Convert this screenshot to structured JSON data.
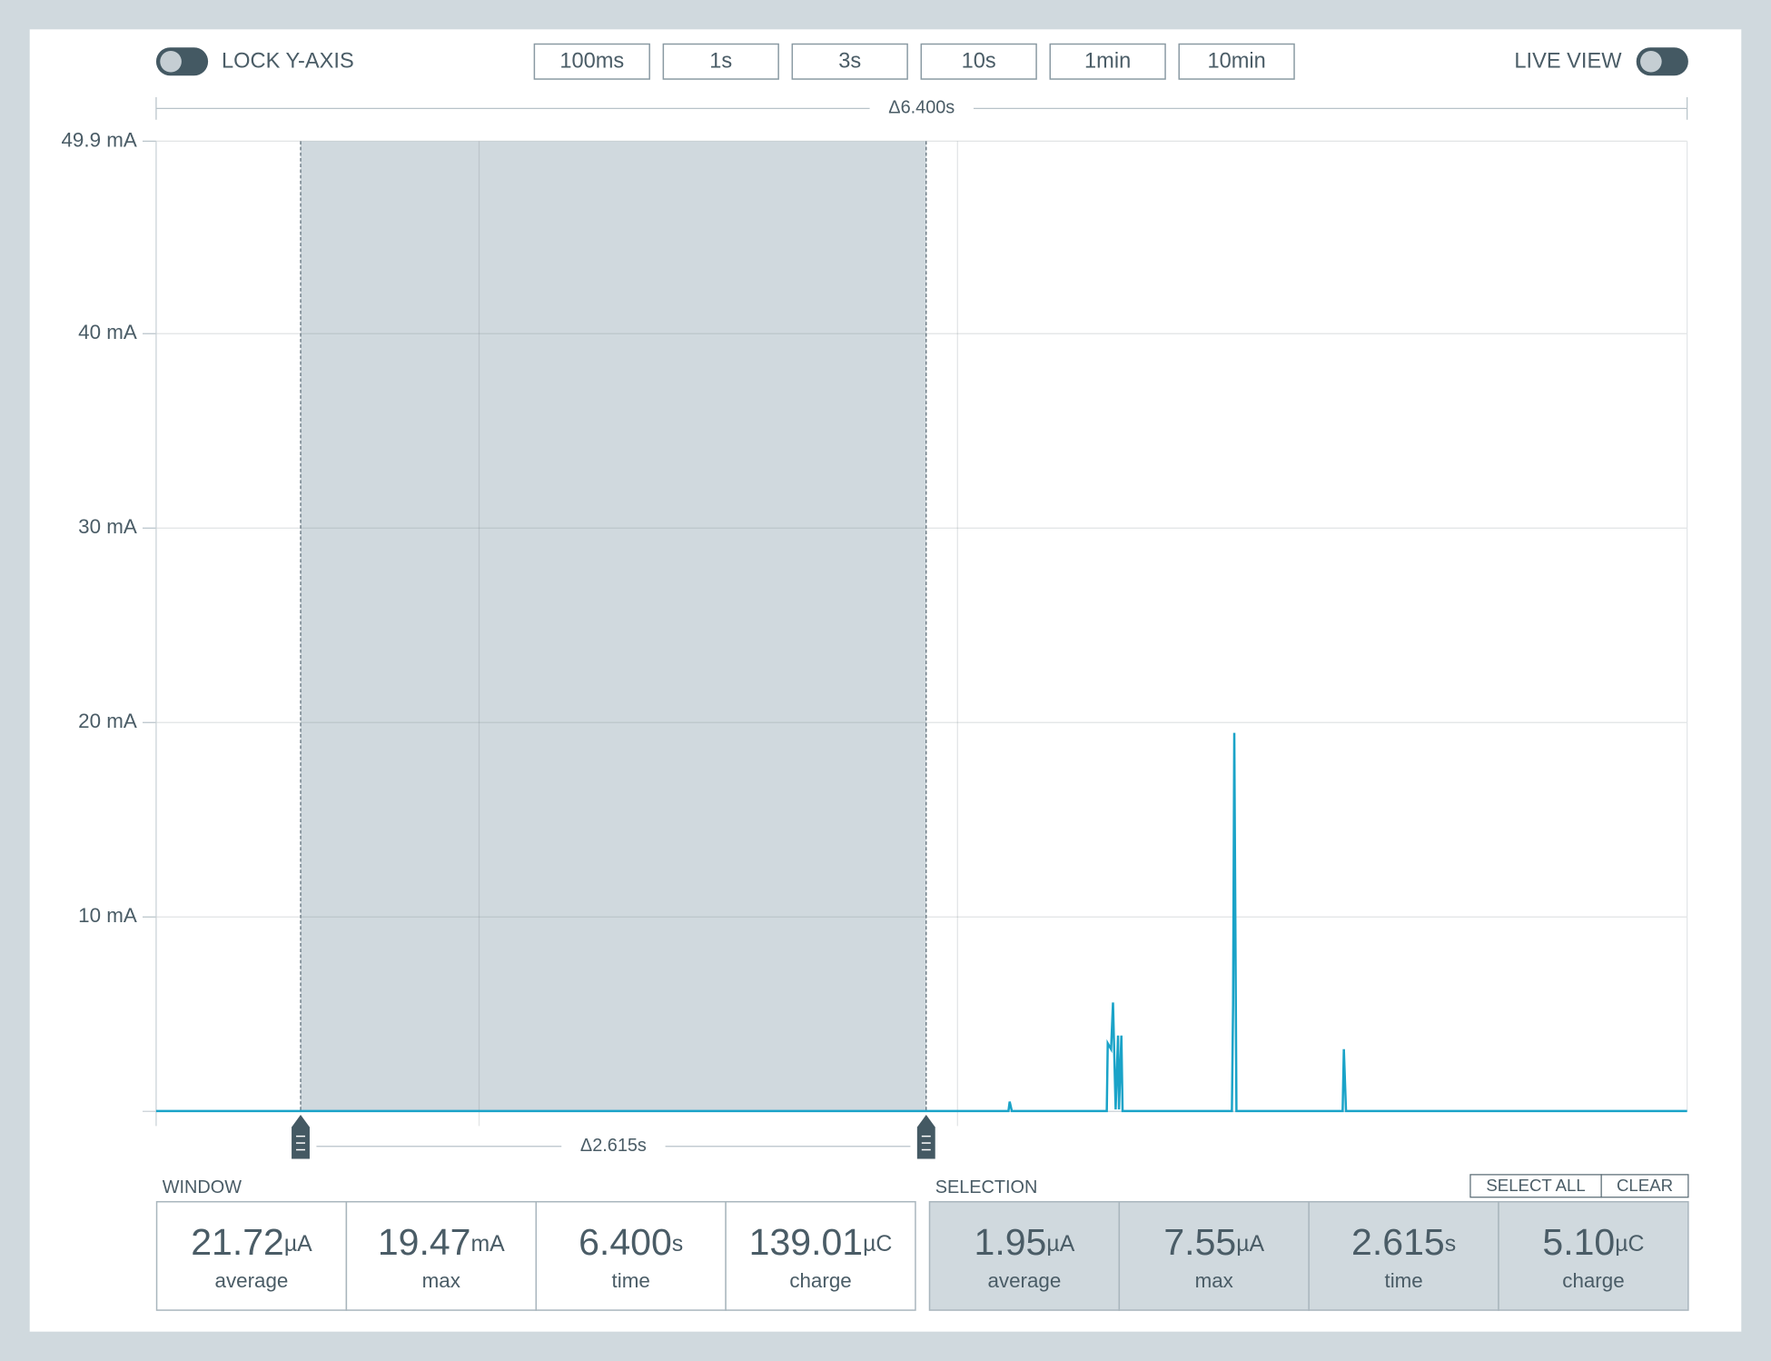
{
  "toggles": {
    "lock_y_axis": "LOCK Y-AXIS",
    "live_view": "LIVE VIEW"
  },
  "time_buttons": [
    "100ms",
    "1s",
    "3s",
    "10s",
    "1min",
    "10min"
  ],
  "window_span": "Δ6.400s",
  "selection_span": "Δ2.615s",
  "chart_data": {
    "type": "line",
    "xlim": [
      0,
      6.4
    ],
    "xticks": [
      1.35,
      3.35
    ],
    "ylim": [
      0,
      49.9
    ],
    "yticks": [
      {
        "value": 49.9,
        "label": "49.9 mA"
      },
      {
        "value": 40,
        "label": "40 mA"
      },
      {
        "value": 30,
        "label": "30 mA"
      },
      {
        "value": 20,
        "label": "20 mA"
      },
      {
        "value": 10,
        "label": "10 mA"
      }
    ],
    "grid": true,
    "selection": [
      0.604,
      3.219
    ],
    "x": [
      0,
      3.563,
      3.568,
      3.577,
      3.974,
      3.978,
      3.992,
      4.0,
      4.011,
      4.021,
      4.025,
      4.035,
      4.04,
      4.497,
      4.502,
      4.507,
      4.516,
      4.96,
      4.965,
      4.974,
      6.4
    ],
    "series": [
      {
        "color": "#1aa3c8",
        "values": [
          0.02,
          0.02,
          0.5,
          0.02,
          0.02,
          3.5,
          3.2,
          5.6,
          0.1,
          3.9,
          0.1,
          3.9,
          0.02,
          0.02,
          5.5,
          19.47,
          0.02,
          0.02,
          3.2,
          0.02,
          0.02
        ]
      }
    ]
  },
  "stats": {
    "window": {
      "title": "WINDOW",
      "cells": [
        {
          "value": "21.72",
          "unit": "µA",
          "label": "average"
        },
        {
          "value": "19.47",
          "unit": "mA",
          "label": "max"
        },
        {
          "value": "6.400",
          "unit": "s",
          "label": "time"
        },
        {
          "value": "139.01",
          "unit": "µC",
          "label": "charge"
        }
      ]
    },
    "selection": {
      "title": "SELECTION",
      "buttons": [
        "SELECT ALL",
        "CLEAR"
      ],
      "cells": [
        {
          "value": "1.95",
          "unit": "µA",
          "label": "average"
        },
        {
          "value": "7.55",
          "unit": "µA",
          "label": "max"
        },
        {
          "value": "2.615",
          "unit": "s",
          "label": "time"
        },
        {
          "value": "5.10",
          "unit": "µC",
          "label": "charge"
        }
      ]
    }
  }
}
